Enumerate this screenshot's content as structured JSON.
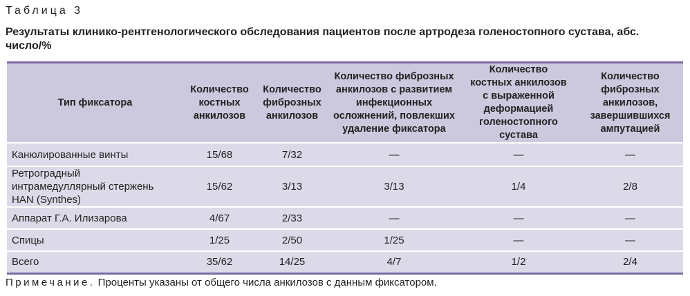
{
  "caption": "Таблица 3",
  "title": "Результаты клинико-рентгенологического обследования пациентов после артродеза голеностопного сустава, абс. число/%",
  "headers": [
    [
      "Тип фиксатора"
    ],
    [
      "Количество",
      "костных",
      "анкилозов"
    ],
    [
      "Количество",
      "фиброзных",
      "анкилозов"
    ],
    [
      "Количество фиброзных",
      "анкилозов с развитием",
      "инфекционных",
      "осложнений, повлекших",
      "удаление фиксатора"
    ],
    [
      "Количество",
      "костных анкилозов",
      "с выраженной",
      "деформацией",
      "голеностопного сустава"
    ],
    [
      "Количество",
      "фиброзных",
      "анкилозов,",
      "завершившихся",
      "ампутацией"
    ]
  ],
  "rows": [
    {
      "cells": [
        [
          "Канюлированные винты"
        ],
        "15/68",
        "7/32",
        "—",
        "—",
        "—"
      ]
    },
    {
      "cells": [
        [
          "Ретроградный",
          "интрамедуллярный стержень",
          "HAN (Synthes)"
        ],
        "15/62",
        "3/13",
        "3/13",
        "1/4",
        "2/8"
      ]
    },
    {
      "cells": [
        [
          "Аппарат Г.А. Илизарова"
        ],
        "4/67",
        "2/33",
        "—",
        "—",
        "—"
      ]
    },
    {
      "cells": [
        [
          "Спицы"
        ],
        "1/25",
        "2/50",
        "1/25",
        "—",
        "—"
      ]
    },
    {
      "cells": [
        [
          "Всего"
        ],
        "35/62",
        "14/25",
        "4/7",
        "1/2",
        "2/4"
      ]
    }
  ],
  "note": {
    "label": "Примечание.",
    "text": " Проценты указаны от общего числа анкилозов с данным фиксатором."
  },
  "colors": {
    "header_bg": "#ccc9de",
    "row_bg": "#dcdae8",
    "rule": "#7a6aa0"
  }
}
